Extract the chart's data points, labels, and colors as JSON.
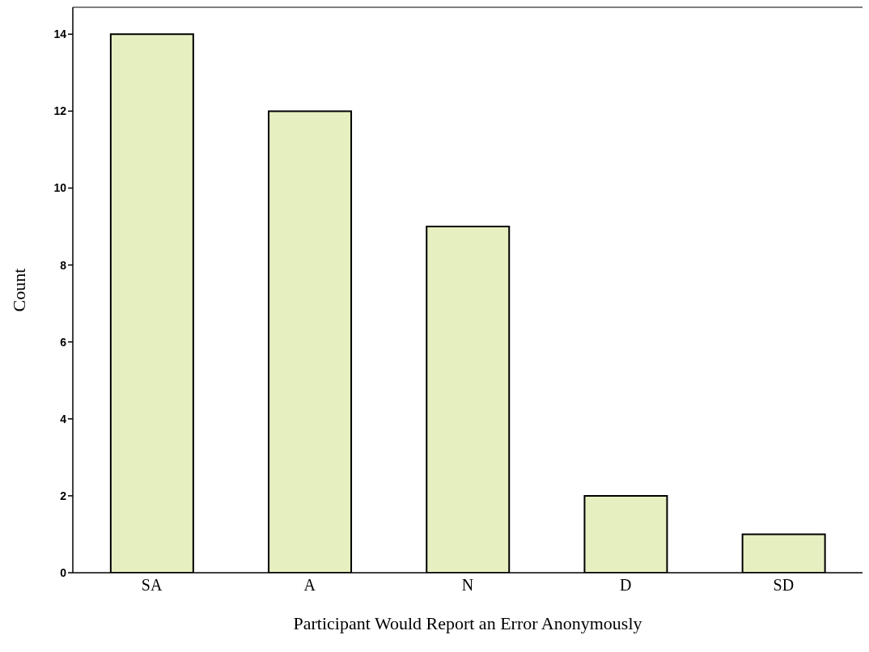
{
  "chart_data": {
    "type": "bar",
    "xlabel": "Participant Would Report an Error Anonymously",
    "ylabel": "Count",
    "categories": [
      "SA",
      "A",
      "N",
      "D",
      "SD"
    ],
    "values": [
      14,
      12,
      9,
      2,
      1
    ],
    "color": "#e6efc0",
    "ylim": [
      0,
      14.7
    ],
    "yticks": [
      0,
      2,
      4,
      6,
      8,
      10,
      12,
      14
    ],
    "grid": false,
    "legend": false
  }
}
